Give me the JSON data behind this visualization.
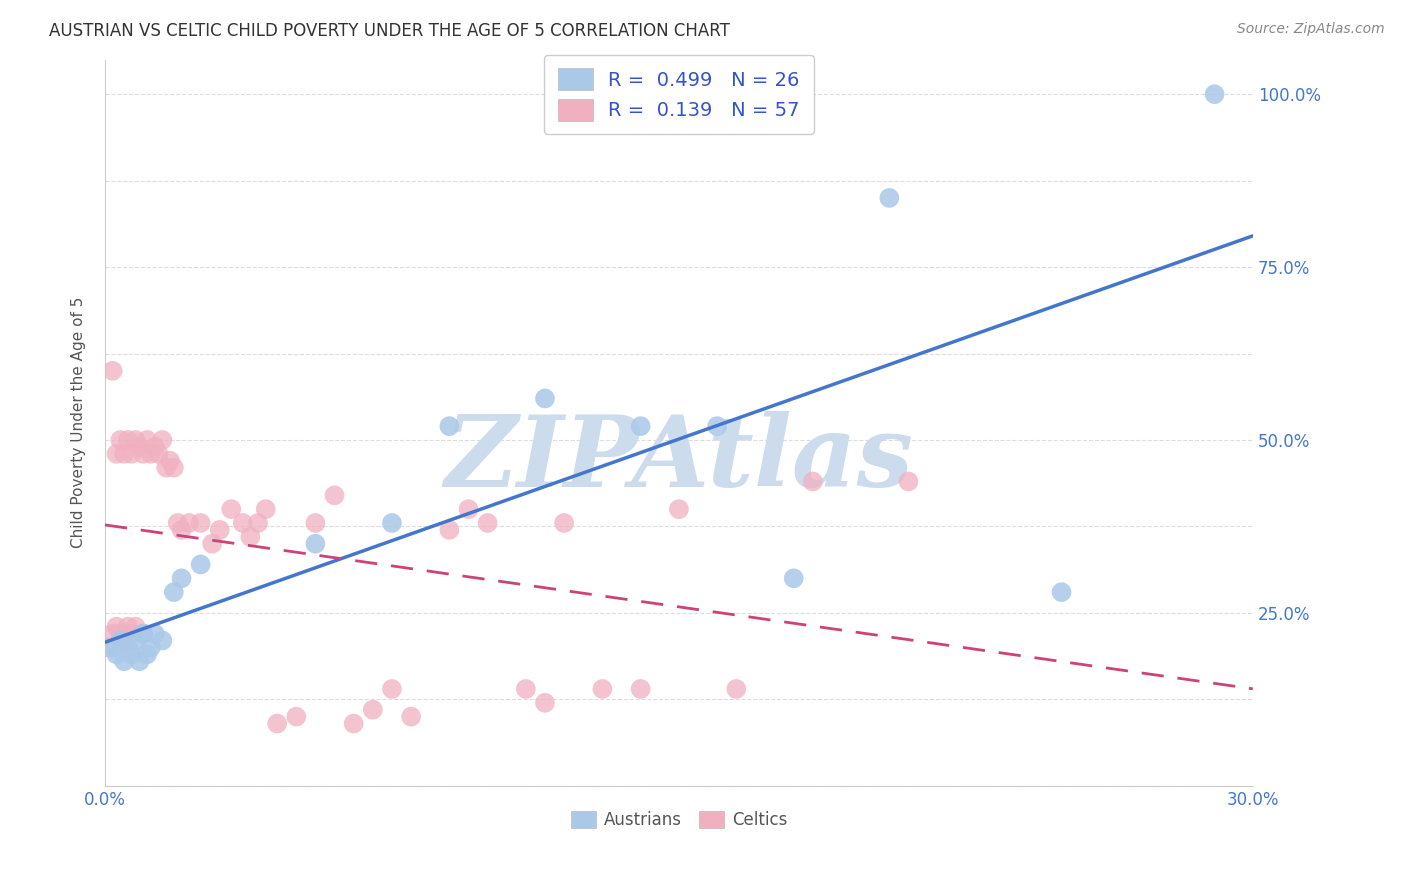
{
  "title": "AUSTRIAN VS CELTIC CHILD POVERTY UNDER THE AGE OF 5 CORRELATION CHART",
  "source": "Source: ZipAtlas.com",
  "ylabel": "Child Poverty Under the Age of 5",
  "xlim": [
    0.0,
    0.3
  ],
  "ylim": [
    0.0,
    1.05
  ],
  "austrians_x": [
    0.002,
    0.003,
    0.004,
    0.005,
    0.006,
    0.007,
    0.008,
    0.009,
    0.01,
    0.011,
    0.012,
    0.013,
    0.015,
    0.018,
    0.02,
    0.025,
    0.055,
    0.075,
    0.09,
    0.115,
    0.14,
    0.16,
    0.18,
    0.205,
    0.25,
    0.29
  ],
  "austrians_y": [
    0.2,
    0.19,
    0.21,
    0.18,
    0.2,
    0.19,
    0.21,
    0.18,
    0.22,
    0.19,
    0.2,
    0.22,
    0.21,
    0.28,
    0.3,
    0.32,
    0.35,
    0.38,
    0.52,
    0.56,
    0.52,
    0.52,
    0.3,
    0.85,
    0.28,
    1.0
  ],
  "celtics_x": [
    0.001,
    0.002,
    0.002,
    0.003,
    0.003,
    0.004,
    0.004,
    0.005,
    0.005,
    0.006,
    0.006,
    0.007,
    0.007,
    0.008,
    0.008,
    0.009,
    0.01,
    0.01,
    0.011,
    0.012,
    0.013,
    0.014,
    0.015,
    0.016,
    0.017,
    0.018,
    0.019,
    0.02,
    0.022,
    0.025,
    0.028,
    0.03,
    0.033,
    0.036,
    0.038,
    0.04,
    0.042,
    0.045,
    0.05,
    0.055,
    0.06,
    0.065,
    0.07,
    0.075,
    0.08,
    0.09,
    0.095,
    0.1,
    0.11,
    0.115,
    0.12,
    0.13,
    0.14,
    0.15,
    0.165,
    0.185,
    0.21
  ],
  "celtics_y": [
    0.2,
    0.22,
    0.6,
    0.23,
    0.48,
    0.22,
    0.5,
    0.21,
    0.48,
    0.23,
    0.5,
    0.48,
    0.22,
    0.5,
    0.23,
    0.49,
    0.48,
    0.22,
    0.5,
    0.48,
    0.49,
    0.48,
    0.5,
    0.46,
    0.47,
    0.46,
    0.38,
    0.37,
    0.38,
    0.38,
    0.35,
    0.37,
    0.4,
    0.38,
    0.36,
    0.38,
    0.4,
    0.09,
    0.1,
    0.38,
    0.42,
    0.09,
    0.11,
    0.14,
    0.1,
    0.37,
    0.4,
    0.38,
    0.14,
    0.12,
    0.38,
    0.14,
    0.14,
    0.4,
    0.14,
    0.44,
    0.44
  ],
  "austrians_color": "#aac8e8",
  "celtics_color": "#f0b0c0",
  "austrians_line_color": "#4477cc",
  "celtics_line_color": "#cc4477",
  "R_austrians": 0.499,
  "N_austrians": 26,
  "R_celtics": 0.139,
  "N_celtics": 57,
  "watermark": "ZIPAtlas",
  "watermark_color": "#ccdcec",
  "background_color": "#ffffff",
  "grid_color": "#dddddd"
}
